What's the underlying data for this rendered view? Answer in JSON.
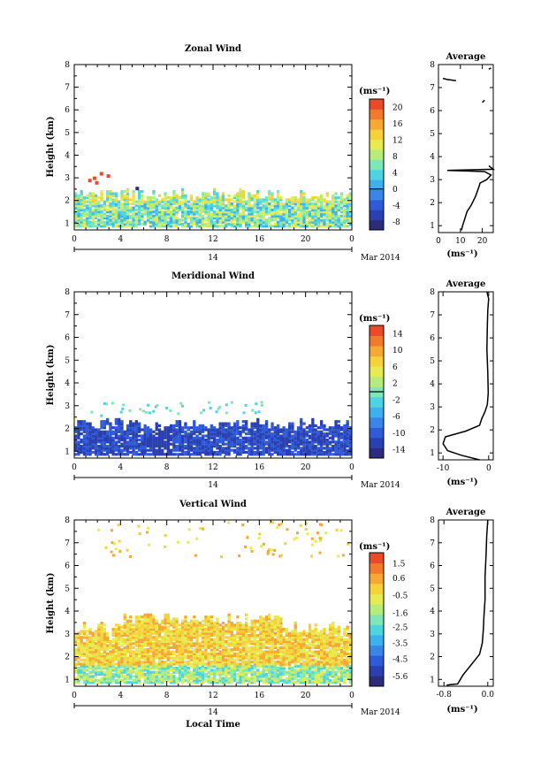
{
  "x_axis_label": "Local Time",
  "date_label": "Mar 2014",
  "date_day": "14",
  "x_ticks": [
    "0",
    "4",
    "8",
    "12",
    "16",
    "20",
    "0"
  ],
  "height_ticks": [
    "1",
    "2",
    "3",
    "4",
    "5",
    "6",
    "7",
    "8"
  ],
  "unit_label": "(ms⁻¹)",
  "colormap": [
    "#2b2d7a",
    "#2a3fb0",
    "#2f5bd8",
    "#3a86e8",
    "#3fb0ee",
    "#4dd4e0",
    "#7fe6b6",
    "#b6ec7a",
    "#e6ec50",
    "#f6d23a",
    "#f6a832",
    "#f27a2c",
    "#e84a2a"
  ],
  "chart_data": [
    {
      "type": "heatmap",
      "title": "Zonal Wind",
      "xlabel": "",
      "ylabel": "Height (km)",
      "xlim": [
        0,
        24
      ],
      "ylim": [
        0.7,
        8
      ],
      "x_ticks": [
        "0",
        "4",
        "8",
        "12",
        "16",
        "20",
        "0"
      ],
      "y_ticks": [
        1,
        2,
        3,
        4,
        5,
        6,
        7,
        8
      ],
      "colorbar": {
        "unit": "(ms⁻¹)",
        "ticks": [
          "20",
          "16",
          "12",
          "8",
          "4",
          "0",
          "-4",
          "-8"
        ],
        "range": [
          -10,
          22
        ],
        "zero_line": 0
      },
      "profile": {
        "title": "Average",
        "xlabel": "(ms⁻¹)",
        "x_ticks": [
          "0",
          "10",
          "20"
        ],
        "xlim": [
          0,
          25
        ],
        "points": [
          [
            10.5,
            0.8
          ],
          [
            11,
            1.0
          ],
          [
            12,
            1.3
          ],
          [
            13,
            1.6
          ],
          [
            15,
            1.9
          ],
          [
            17,
            2.3
          ],
          [
            18.5,
            2.7
          ],
          [
            19,
            2.85
          ],
          [
            22,
            3.0
          ],
          [
            24,
            3.2
          ],
          [
            21,
            3.35
          ],
          [
            4,
            3.4
          ],
          [
            25,
            3.45
          ],
          [
            23,
            3.6
          ]
        ],
        "extra_segments": [
          [
            [
              8,
              7.3
            ],
            [
              4,
              7.35
            ],
            [
              2,
              7.4
            ]
          ],
          [
            [
              20,
              6.35
            ],
            [
              21,
              6.45
            ]
          ],
          [
            [
              23,
              7.8
            ],
            [
              24,
              7.85
            ]
          ]
        ]
      },
      "filled_region": {
        "x": [
          0,
          24
        ],
        "y": [
          0.8,
          2.2
        ]
      }
    },
    {
      "type": "heatmap",
      "title": "Meridional Wind",
      "xlabel": "",
      "ylabel": "Height (km)",
      "xlim": [
        0,
        24
      ],
      "ylim": [
        0.7,
        8
      ],
      "x_ticks": [
        "0",
        "4",
        "8",
        "12",
        "16",
        "20",
        "0"
      ],
      "y_ticks": [
        1,
        2,
        3,
        4,
        5,
        6,
        7,
        8
      ],
      "colorbar": {
        "unit": "(ms⁻¹)",
        "ticks": [
          "14",
          "10",
          "6",
          "2",
          "-2",
          "-6",
          "-10",
          "-14"
        ],
        "range": [
          -16,
          16
        ],
        "zero_line": 0
      },
      "profile": {
        "title": "Average",
        "xlabel": "(ms⁻¹)",
        "x_ticks": [
          "-10",
          "0"
        ],
        "xlim": [
          -11,
          1
        ],
        "points": [
          [
            -2,
            0.7
          ],
          [
            -6,
            0.9
          ],
          [
            -9,
            1.1
          ],
          [
            -10,
            1.4
          ],
          [
            -9.5,
            1.7
          ],
          [
            -5,
            1.95
          ],
          [
            -2,
            2.2
          ],
          [
            -1.5,
            2.5
          ],
          [
            -0.8,
            2.8
          ],
          [
            -0.3,
            3.1
          ],
          [
            -0.1,
            3.6
          ],
          [
            -0.2,
            4.5
          ],
          [
            -0.4,
            5.5
          ],
          [
            -0.3,
            6.5
          ],
          [
            -0.2,
            7.2
          ],
          [
            0,
            7.7
          ],
          [
            -0.4,
            8
          ]
        ]
      },
      "filled_region": {
        "x": [
          0,
          24
        ],
        "y": [
          0.8,
          2.1
        ]
      }
    },
    {
      "type": "heatmap",
      "title": "Vertical Wind",
      "xlabel": "Local Time",
      "ylabel": "Height (km)",
      "xlim": [
        0,
        24
      ],
      "ylim": [
        0.7,
        8
      ],
      "x_ticks": [
        "0",
        "4",
        "8",
        "12",
        "16",
        "20",
        "0"
      ],
      "y_ticks": [
        1,
        2,
        3,
        4,
        5,
        6,
        7,
        8
      ],
      "colorbar": {
        "unit": "(ms⁻¹)",
        "ticks": [
          "1.5",
          "0.6",
          "-0.5",
          "-1.6",
          "-2.5",
          "-3.5",
          "-4.5",
          "-5.6"
        ],
        "range": [
          -6.2,
          2.2
        ]
      },
      "profile": {
        "title": "Average",
        "xlabel": "(ms⁻¹)",
        "x_ticks": [
          "-0.8",
          "0.0"
        ],
        "xlim": [
          -0.9,
          0.1
        ],
        "points": [
          [
            -0.75,
            0.75
          ],
          [
            -0.55,
            0.8
          ],
          [
            -0.45,
            1.2
          ],
          [
            -0.35,
            1.5
          ],
          [
            -0.25,
            1.8
          ],
          [
            -0.15,
            2.1
          ],
          [
            -0.1,
            2.6
          ],
          [
            -0.08,
            3.2
          ],
          [
            -0.07,
            3.8
          ],
          [
            -0.05,
            4.5
          ],
          [
            -0.05,
            5.5
          ],
          [
            -0.03,
            6.5
          ],
          [
            -0.02,
            7.3
          ],
          [
            0,
            8
          ]
        ]
      },
      "filled_region": {
        "x": [
          0,
          24
        ],
        "y": [
          0.8,
          3.2
        ]
      }
    }
  ]
}
